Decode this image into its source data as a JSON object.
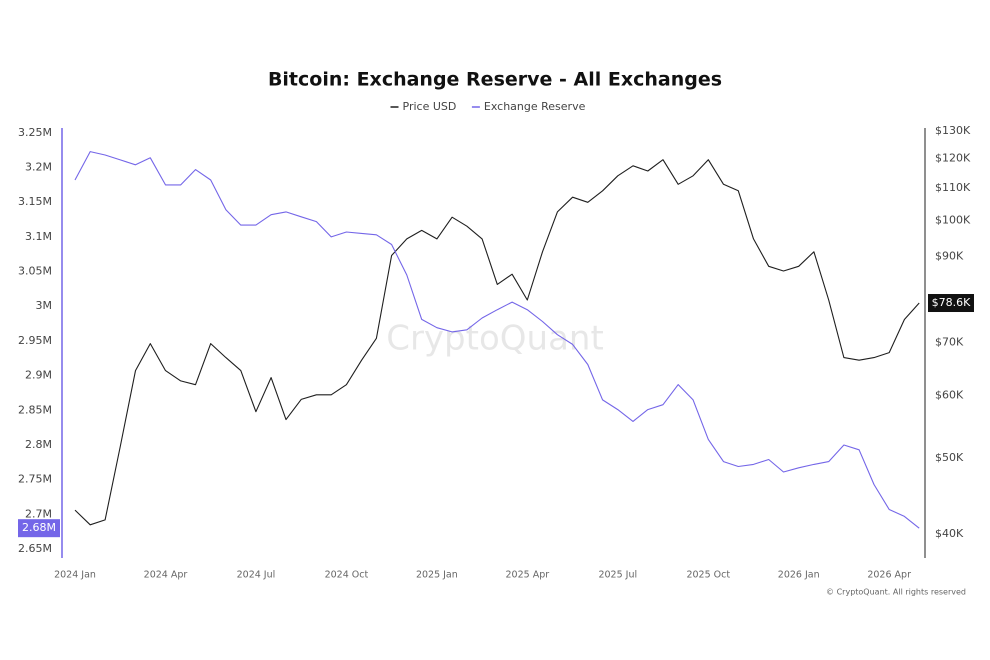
{
  "chart_data": {
    "type": "line",
    "title": "Bitcoin: Exchange Reserve - All Exchanges",
    "watermark": "CryptoQuant",
    "copyright": "© CryptoQuant. All rights reserved",
    "x": [
      2024,
      2024.042,
      2024.083,
      2024.125,
      2024.167,
      2024.208,
      2024.25,
      2024.292,
      2024.333,
      2024.375,
      2024.417,
      2024.458,
      2024.5,
      2024.542,
      2024.583,
      2024.625,
      2024.667,
      2024.708,
      2024.75,
      2024.792,
      2024.833,
      2024.875,
      2024.917,
      2024.958,
      2025,
      2025.042,
      2025.083,
      2025.125,
      2025.167,
      2025.208,
      2025.25,
      2025.292,
      2025.333,
      2025.375,
      2025.417,
      2025.458,
      2025.5,
      2025.542,
      2025.583,
      2025.625,
      2025.667,
      2025.708,
      2025.75,
      2025.792,
      2025.833,
      2025.875,
      2025.917,
      2025.958,
      2026,
      2026.042,
      2026.083,
      2026.125,
      2026.167,
      2026.208,
      2026.25,
      2026.292,
      2026.333
    ],
    "series": [
      {
        "name": "Price USD",
        "color": "#1f1f1f",
        "axis": "y2",
        "end_label": "$78.6K",
        "values": [
          42900,
          41100,
          41700,
          51700,
          64500,
          69800,
          64500,
          62600,
          61900,
          69800,
          67000,
          64500,
          57200,
          63200,
          55900,
          59300,
          60100,
          60100,
          61900,
          66500,
          70900,
          90300,
          94800,
          97200,
          94800,
          101000,
          98400,
          94800,
          83000,
          85500,
          79300,
          91300,
          102600,
          107100,
          105500,
          109100,
          114000,
          117400,
          115600,
          119500,
          111200,
          114000,
          119500,
          111200,
          109100,
          94800,
          87500,
          86300,
          87500,
          91300,
          79300,
          67000,
          66500,
          67000,
          68000,
          74900,
          78600
        ]
      },
      {
        "name": "Exchange Reserve",
        "color": "#7466e8",
        "axis": "y",
        "end_label": "2.68M",
        "values": [
          3182000,
          3223000,
          3218000,
          3211000,
          3204000,
          3214000,
          3175000,
          3175000,
          3197000,
          3182000,
          3139000,
          3117000,
          3117000,
          3132000,
          3136000,
          3129000,
          3122000,
          3100000,
          3107000,
          3105000,
          3103000,
          3089000,
          3045000,
          2981000,
          2969000,
          2963000,
          2966000,
          2983000,
          2995000,
          3006000,
          2995000,
          2978000,
          2959000,
          2945000,
          2916000,
          2865000,
          2851000,
          2834000,
          2851000,
          2858000,
          2887000,
          2865000,
          2808000,
          2776000,
          2769000,
          2772000,
          2779000,
          2761000,
          2767000,
          2772000,
          2776000,
          2800000,
          2793000,
          2743000,
          2707000,
          2697000,
          2680000
        ]
      }
    ],
    "xlim": [
      2023.964,
      2026.349
    ],
    "xticks": [
      {
        "value": 2024,
        "label": "2024 Jan"
      },
      {
        "value": 2024.25,
        "label": "2024 Apr"
      },
      {
        "value": 2024.5,
        "label": "2024 Jul"
      },
      {
        "value": 2024.75,
        "label": "2024 Oct"
      },
      {
        "value": 2025,
        "label": "2025 Jan"
      },
      {
        "value": 2025.25,
        "label": "2025 Apr"
      },
      {
        "value": 2025.5,
        "label": "2025 Jul"
      },
      {
        "value": 2025.75,
        "label": "2025 Oct"
      },
      {
        "value": 2026,
        "label": "2026 Jan"
      },
      {
        "value": 2026.25,
        "label": "2026 Apr"
      }
    ],
    "ylim": [
      2637000,
      3257000
    ],
    "yticks": [
      {
        "value": 2650000,
        "label": "2.65M"
      },
      {
        "value": 2700000,
        "label": "2.7M"
      },
      {
        "value": 2750000,
        "label": "2.75M"
      },
      {
        "value": 2800000,
        "label": "2.8M"
      },
      {
        "value": 2850000,
        "label": "2.85M"
      },
      {
        "value": 2900000,
        "label": "2.9M"
      },
      {
        "value": 2950000,
        "label": "2.95M"
      },
      {
        "value": 3000000,
        "label": "3M"
      },
      {
        "value": 3050000,
        "label": "3.05M"
      },
      {
        "value": 3100000,
        "label": "3.1M"
      },
      {
        "value": 3150000,
        "label": "3.15M"
      },
      {
        "value": 3200000,
        "label": "3.2M"
      },
      {
        "value": 3250000,
        "label": "3.25M"
      }
    ],
    "y2lim": [
      37300,
      131100
    ],
    "y2scale": "log",
    "y2ticks": [
      {
        "value": 40000,
        "label": "$40K"
      },
      {
        "value": 50000,
        "label": "$50K"
      },
      {
        "value": 60000,
        "label": "$60K"
      },
      {
        "value": 70000,
        "label": "$70K"
      },
      {
        "value": 90000,
        "label": "$90K"
      },
      {
        "value": 100000,
        "label": "$100K"
      },
      {
        "value": 110000,
        "label": "$110K"
      },
      {
        "value": 120000,
        "label": "$120K"
      },
      {
        "value": 130000,
        "label": "$130K"
      }
    ],
    "grid": false,
    "legend": "top"
  }
}
